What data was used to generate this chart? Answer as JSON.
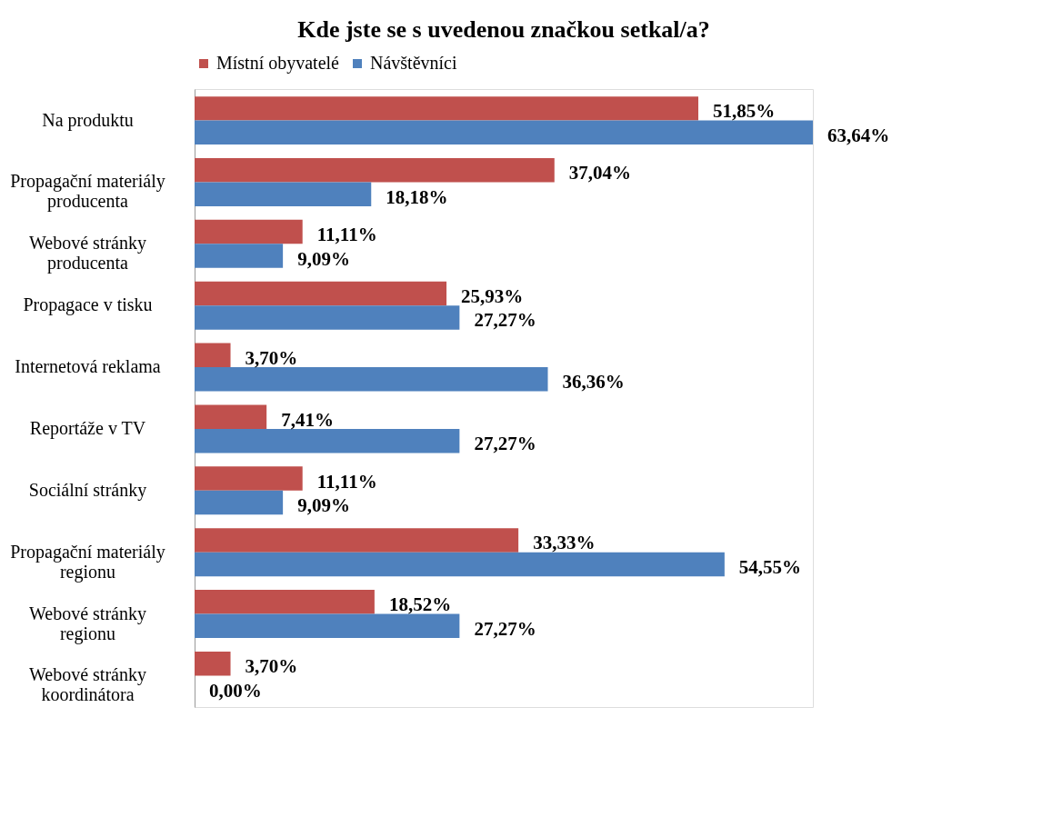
{
  "chart_data": {
    "type": "bar",
    "orientation": "horizontal",
    "title": "Kde jste se s uvedenou značkou setkal/a?",
    "categories": [
      "Na produktu",
      "Propagační materiály producenta",
      "Webové stránky producenta",
      "Propagace v tisku",
      "Internetová reklama",
      "Reportáže v TV",
      "Sociální stránky",
      "Propagační materiály regionu",
      "Webové stránky regionu",
      "Webové stránky koordinátora"
    ],
    "series": [
      {
        "name": "Místní obyvatelé",
        "color": "#c0504d",
        "values": [
          51.85,
          37.04,
          11.11,
          25.93,
          3.7,
          7.41,
          11.11,
          33.33,
          18.52,
          3.7
        ],
        "value_labels": [
          "51,85%",
          "37,04%",
          "11,11%",
          "25,93%",
          "3,70%",
          "7,41%",
          "11,11%",
          "33,33%",
          "18,52%",
          "3,70%"
        ]
      },
      {
        "name": "Návštěvníci",
        "color": "#4f81bd",
        "values": [
          63.64,
          18.18,
          9.09,
          27.27,
          36.36,
          27.27,
          9.09,
          54.55,
          27.27,
          0.0
        ],
        "value_labels": [
          "63,64%",
          "18,18%",
          "9,09%",
          "27,27%",
          "36,36%",
          "27,27%",
          "9,09%",
          "54,55%",
          "27,27%",
          "0,00%"
        ]
      }
    ],
    "legend": "top",
    "grid": false
  }
}
